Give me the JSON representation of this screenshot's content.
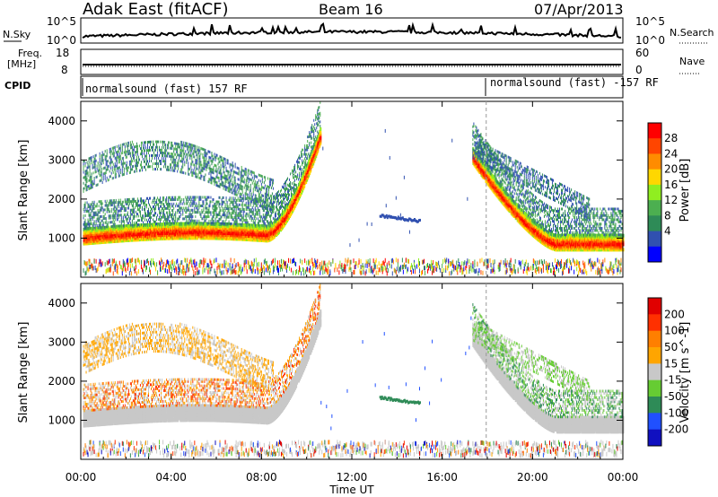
{
  "header": {
    "title": "Adak East (fitACF)",
    "beam": "Beam 16",
    "date": "07/Apr/2013"
  },
  "top_panels": {
    "nsky_label": "N.Sky",
    "nsearch_label": "N.Search",
    "nsky_ticks": [
      "10^5",
      "10^0"
    ],
    "nsearch_ticks": [
      "10^5",
      "10^0"
    ],
    "freq_label": "Freq.",
    "freq_unit": "[MHz]",
    "freq_ticks": [
      "18",
      "8"
    ],
    "nave_label": "Nave",
    "nave_ticks": [
      "60",
      "0"
    ],
    "cpid_label": "CPID",
    "cpid_segments": [
      "normalsound (fast) 157 RF",
      "normalsound (fast) -157 RF"
    ]
  },
  "chart_data": [
    {
      "type": "heatmap",
      "title": "",
      "xlabel": "Time UT",
      "ylabel": "Slant Range [km]",
      "x_ticks": [
        "00:00",
        "04:00",
        "08:00",
        "12:00",
        "16:00",
        "20:00",
        "00:00"
      ],
      "xlim_hours": [
        0,
        24
      ],
      "y_ticks": [
        1000,
        2000,
        3000,
        4000
      ],
      "ylim": [
        0,
        4500
      ],
      "colorbar": {
        "label": "Power [dB]",
        "ticks": [
          "28",
          "24",
          "20",
          "16",
          "12",
          "8",
          "4"
        ],
        "range": [
          0,
          32
        ],
        "colors": [
          "#0000ff",
          "#3050b0",
          "#2e8b57",
          "#4caf50",
          "#90ee20",
          "#ffd700",
          "#ff8c00",
          "#ff4500",
          "#ff0000"
        ]
      },
      "echo_regions": [
        {
          "name": "ground scatter band",
          "t_start": 0.3,
          "t_end": 10.5,
          "range_km": [
            900,
            1300
          ],
          "power_db": 24
        },
        {
          "name": "ionospheric scatter",
          "t_start": 0.5,
          "t_end": 9.0,
          "range_km": [
            1600,
            3500
          ],
          "power_db": 8
        },
        {
          "name": "ground scatter band (evening)",
          "t_start": 17.3,
          "t_end": 24,
          "range_km": [
            900,
            1500
          ],
          "power_db": 24
        },
        {
          "name": "patch",
          "t_start": 13.2,
          "t_end": 15.0,
          "range_km": [
            1450,
            1600
          ],
          "power_db": 6
        }
      ]
    },
    {
      "type": "heatmap",
      "title": "",
      "xlabel": "Time UT",
      "ylabel": "Slant Range [km]",
      "x_ticks": [
        "00:00",
        "04:00",
        "08:00",
        "12:00",
        "16:00",
        "20:00",
        "00:00"
      ],
      "xlim_hours": [
        0,
        24
      ],
      "y_ticks": [
        1000,
        2000,
        3000,
        4000
      ],
      "ylim": [
        0,
        4500
      ],
      "colorbar": {
        "label": "Velocity [m s^-1]",
        "ticks": [
          "200",
          "100",
          "50",
          "15",
          "-15",
          "-50",
          "-100",
          "-200"
        ],
        "colors": [
          "#1010c0",
          "#2050ff",
          "#2e8b57",
          "#66cc33",
          "#c8c8c8",
          "#ffa500",
          "#ff7f00",
          "#ff3000",
          "#e00000"
        ]
      }
    }
  ]
}
